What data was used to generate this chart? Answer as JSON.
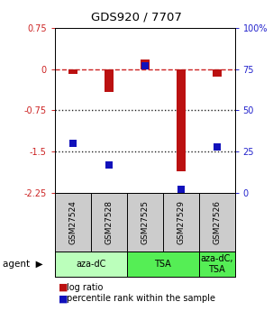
{
  "title": "GDS920 / 7707",
  "samples": [
    "GSM27524",
    "GSM27528",
    "GSM27525",
    "GSM27529",
    "GSM27526"
  ],
  "log_ratio": [
    -0.08,
    -0.42,
    0.18,
    -1.85,
    -0.13
  ],
  "percentile_rank": [
    30,
    17,
    77,
    2,
    28
  ],
  "ylim_left": [
    -2.25,
    0.75
  ],
  "ylim_right": [
    0,
    100
  ],
  "yticks_left": [
    -2.25,
    -1.5,
    -0.75,
    0,
    0.75
  ],
  "yticks_right": [
    0,
    25,
    50,
    75,
    100
  ],
  "bar_color": "#bb1111",
  "dot_color": "#1111bb",
  "agent_groups": [
    {
      "label": "aza-dC",
      "span": [
        0,
        2
      ],
      "color": "#bbffbb"
    },
    {
      "label": "TSA",
      "span": [
        2,
        4
      ],
      "color": "#55ee55"
    },
    {
      "label": "aza-dC,\nTSA",
      "span": [
        4,
        5
      ],
      "color": "#55ee55"
    }
  ],
  "legend_bar_label": "log ratio",
  "legend_dot_label": "percentile rank within the sample",
  "background_color": "#ffffff",
  "plot_bg": "#ffffff",
  "tick_color_left": "#cc2222",
  "tick_color_right": "#2222cc",
  "sample_bg": "#cccccc",
  "bar_width": 0.25
}
